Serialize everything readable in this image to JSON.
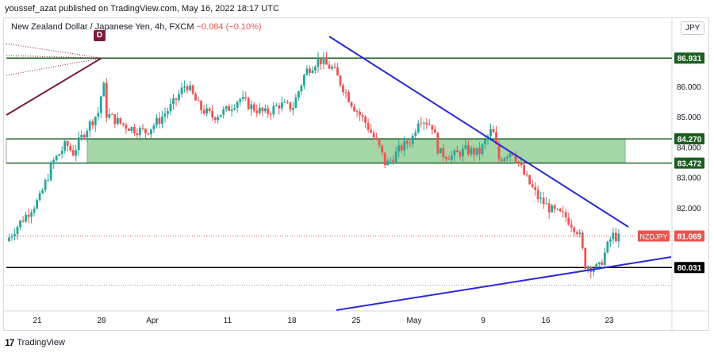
{
  "header": {
    "published_text": "youssef_azat published on TradingView.com, May 16, 2022 18:17 UTC"
  },
  "symbol": {
    "name": "New Zealand Dollar / Japanese Yen, 4h, FXCM",
    "change": "−0.084 (−0.10%)"
  },
  "marker": {
    "label": "D"
  },
  "currency_button": "JPY",
  "footer": {
    "brand": "TradingView"
  },
  "colors": {
    "up": "#26a69a",
    "down": "#ef5350",
    "level": "#1b5e20",
    "zone": "#a5d6a7",
    "trend": "#2929d6",
    "fan": "#7b1c3a",
    "support": "#000000"
  },
  "chart_data": {
    "type": "candlestick",
    "symbol": "NZDJPY",
    "timeframe": "4h",
    "ylim": [
      78.6,
      87.8
    ],
    "y_ticks": [
      "86.000",
      "85.000",
      "84.000",
      "83.000",
      "82.000"
    ],
    "x_ticks": [
      "21",
      "28",
      "Apr",
      "11",
      "18",
      "25",
      "May",
      "9",
      "16",
      "23"
    ],
    "price_labels": [
      {
        "text": "86.931",
        "value": 86.931,
        "color": "#1b5e20"
      },
      {
        "text": "84.270",
        "value": 84.27,
        "color": "#1b5e20"
      },
      {
        "text": "83.472",
        "value": 83.472,
        "color": "#1b5e20"
      },
      {
        "text": "80.031",
        "value": 80.031,
        "color": "#000000"
      },
      {
        "text": "81.069",
        "value": 81.069,
        "color": "#ef5350"
      }
    ],
    "symbol_label": "NZDJPY",
    "horizontal_levels": [
      86.931,
      84.27,
      83.472,
      80.031
    ],
    "dotted_levels": [
      81.069,
      79.45
    ],
    "supply_zone": [
      83.472,
      84.27
    ],
    "price_path": [
      [
        0,
        80.9
      ],
      [
        0.02,
        81.5
      ],
      [
        0.05,
        82.3
      ],
      [
        0.07,
        83.5
      ],
      [
        0.09,
        84.1
      ],
      [
        0.1,
        83.8
      ],
      [
        0.12,
        84.6
      ],
      [
        0.14,
        85.2
      ],
      [
        0.145,
        86.3
      ],
      [
        0.15,
        85.1
      ],
      [
        0.17,
        84.8
      ],
      [
        0.19,
        84.6
      ],
      [
        0.21,
        84.5
      ],
      [
        0.23,
        84.9
      ],
      [
        0.25,
        85.4
      ],
      [
        0.27,
        86.1
      ],
      [
        0.29,
        85.3
      ],
      [
        0.31,
        85.0
      ],
      [
        0.33,
        85.2
      ],
      [
        0.35,
        85.6
      ],
      [
        0.37,
        85.3
      ],
      [
        0.39,
        85.1
      ],
      [
        0.41,
        85.4
      ],
      [
        0.43,
        85.3
      ],
      [
        0.45,
        86.5
      ],
      [
        0.47,
        86.9
      ],
      [
        0.48,
        86.7
      ],
      [
        0.49,
        86.6
      ],
      [
        0.5,
        86.2
      ],
      [
        0.52,
        85.4
      ],
      [
        0.54,
        84.8
      ],
      [
        0.56,
        84.0
      ],
      [
        0.57,
        83.4
      ],
      [
        0.59,
        83.9
      ],
      [
        0.61,
        84.3
      ],
      [
        0.62,
        85.0
      ],
      [
        0.64,
        84.7
      ],
      [
        0.65,
        83.8
      ],
      [
        0.67,
        83.7
      ],
      [
        0.69,
        83.9
      ],
      [
        0.71,
        83.8
      ],
      [
        0.73,
        84.6
      ],
      [
        0.74,
        83.6
      ],
      [
        0.76,
        83.9
      ],
      [
        0.78,
        83.0
      ],
      [
        0.8,
        82.3
      ],
      [
        0.82,
        81.9
      ],
      [
        0.84,
        81.7
      ],
      [
        0.86,
        81.2
      ],
      [
        0.87,
        80.1
      ],
      [
        0.89,
        80.0
      ],
      [
        0.91,
        81.1
      ],
      [
        0.92,
        81.0
      ]
    ]
  }
}
